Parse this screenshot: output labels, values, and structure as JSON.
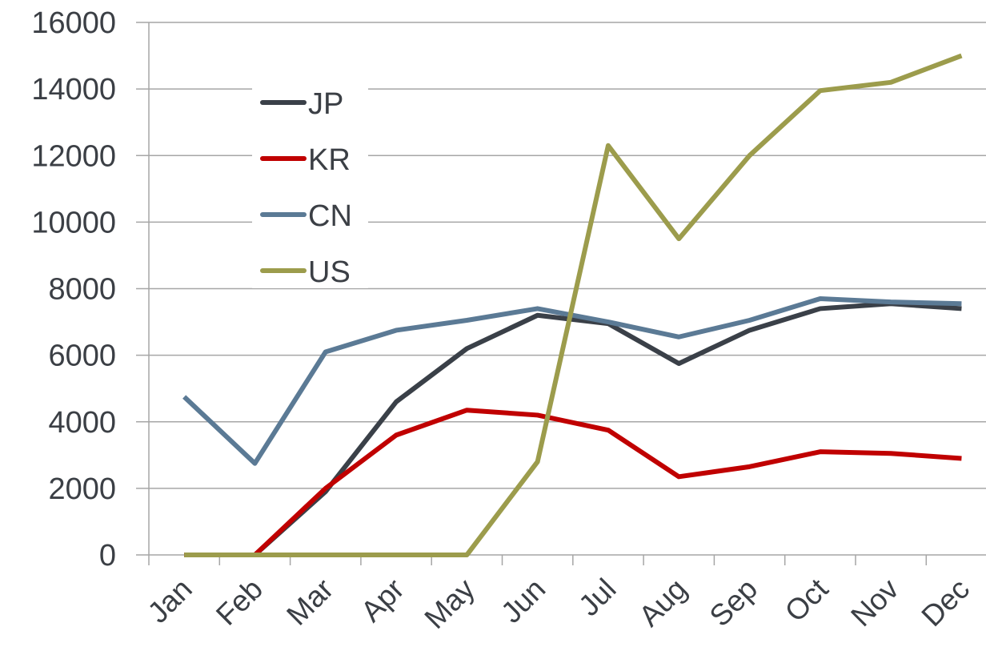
{
  "chart_data": {
    "type": "line",
    "categories": [
      "Jan",
      "Feb",
      "Mar",
      "Apr",
      "May",
      "Jun",
      "Jul",
      "Aug",
      "Sep",
      "Oct",
      "Nov",
      "Dec"
    ],
    "series": [
      {
        "name": "JP",
        "color": "#3a4048",
        "values": [
          0,
          0,
          1900,
          4600,
          6200,
          7200,
          6950,
          5750,
          6750,
          7400,
          7550,
          7400
        ]
      },
      {
        "name": "KR",
        "color": "#c00000",
        "values": [
          0,
          0,
          2000,
          3600,
          4350,
          4200,
          3750,
          2350,
          2650,
          3100,
          3050,
          2900
        ]
      },
      {
        "name": "CN",
        "color": "#5b7a95",
        "values": [
          4750,
          2750,
          6100,
          6750,
          7050,
          7400,
          7000,
          6550,
          7050,
          7700,
          7600,
          7550
        ]
      },
      {
        "name": "US",
        "color": "#9c9c4c",
        "values": [
          0,
          0,
          0,
          0,
          0,
          2800,
          12300,
          9500,
          12000,
          13950,
          14200,
          15000
        ]
      }
    ],
    "ylim": [
      0,
      16000
    ],
    "yticks": [
      0,
      2000,
      4000,
      6000,
      8000,
      10000,
      12000,
      14000,
      16000
    ],
    "grid": true,
    "legend": "upper left"
  }
}
